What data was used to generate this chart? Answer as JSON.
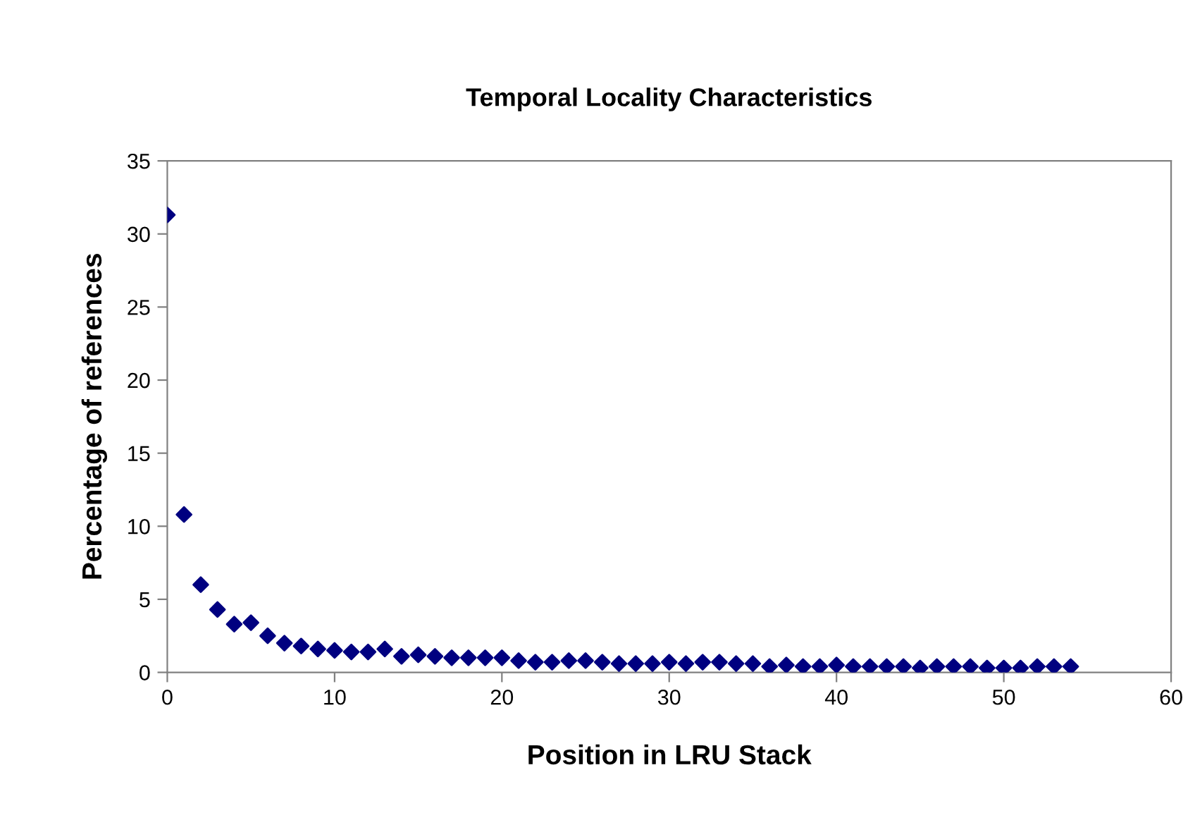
{
  "chart_data": {
    "type": "scatter",
    "title": "Temporal Locality Characteristics",
    "xlabel": "Position in LRU Stack",
    "ylabel": "Percentage of references",
    "x": [
      0,
      1,
      2,
      3,
      4,
      5,
      6,
      7,
      8,
      9,
      10,
      11,
      12,
      13,
      14,
      15,
      16,
      17,
      18,
      19,
      20,
      21,
      22,
      23,
      24,
      25,
      26,
      27,
      28,
      29,
      30,
      31,
      32,
      33,
      34,
      35,
      36,
      37,
      38,
      39,
      40,
      41,
      42,
      43,
      44,
      45,
      46,
      47,
      48,
      49,
      50,
      51,
      52,
      53,
      54
    ],
    "series": [
      {
        "color": "#000080",
        "values": [
          31.3,
          10.8,
          6.0,
          4.3,
          3.3,
          3.4,
          2.5,
          2.0,
          1.8,
          1.6,
          1.5,
          1.4,
          1.4,
          1.6,
          1.1,
          1.2,
          1.1,
          1.0,
          1.0,
          1.0,
          1.0,
          0.8,
          0.7,
          0.7,
          0.8,
          0.8,
          0.7,
          0.6,
          0.6,
          0.6,
          0.7,
          0.6,
          0.7,
          0.7,
          0.6,
          0.6,
          0.4,
          0.5,
          0.4,
          0.4,
          0.5,
          0.4,
          0.4,
          0.4,
          0.4,
          0.3,
          0.4,
          0.4,
          0.4,
          0.3,
          0.3,
          0.3,
          0.4,
          0.4,
          0.4
        ]
      }
    ],
    "xlim": [
      0,
      60
    ],
    "xticks": [
      0,
      10,
      20,
      30,
      40,
      50,
      60
    ],
    "ylim": [
      0,
      35
    ],
    "yticks": [
      0,
      5,
      10,
      15,
      20,
      25,
      30,
      35
    ],
    "marker": "diamond",
    "grid": false
  }
}
